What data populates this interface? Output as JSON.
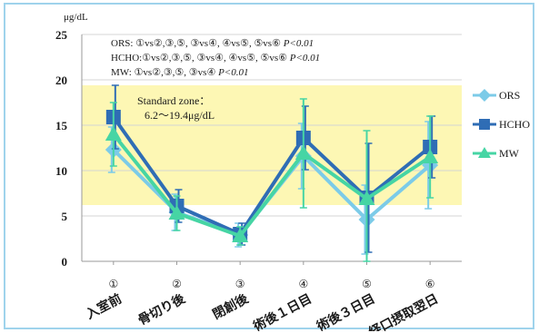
{
  "chart_data": {
    "type": "line",
    "unit_label": "μg/dL",
    "ylim": [
      0,
      25
    ],
    "yticks": [
      0,
      5,
      10,
      15,
      20,
      25
    ],
    "grid": true,
    "legend_position": "right",
    "category_numbers": [
      "①",
      "②",
      "③",
      "④",
      "⑤",
      "⑥"
    ],
    "categories": [
      "入室前",
      "骨切り後",
      "閉創後",
      "術後１日目",
      "術後３日目",
      "経口摂取翌日"
    ],
    "standard_zone": {
      "range": [
        6.2,
        19.4
      ],
      "label_line1": "Standard zone：",
      "label_line2": "6.2〜19.4μg/dL",
      "color": "#fdf7b4"
    },
    "notes": [
      {
        "name": "ORS",
        "text": ": ①vs②,③,⑤, ③vs④, ④vs⑤, ⑤vs⑥ ",
        "p": "P<0.01"
      },
      {
        "name": "HCHO",
        "text": ":①vs②,③,⑤, ③vs④, ④vs⑤, ⑤vs⑥ ",
        "p": "P<0.01"
      },
      {
        "name": "MW",
        "text": ": ①vs②,③,⑤, ③vs④ ",
        "p": "P<0.01"
      }
    ],
    "series": [
      {
        "name": "ORS",
        "color": "#7ccbe8",
        "marker": "diamond",
        "values": [
          12.3,
          5.4,
          2.9,
          11.6,
          4.6,
          10.6
        ],
        "errors": [
          2.5,
          2.0,
          1.3,
          3.6,
          3.8,
          4.8
        ]
      },
      {
        "name": "HCHO",
        "color": "#2f6db5",
        "marker": "square",
        "values": [
          15.9,
          6.1,
          3.0,
          13.6,
          7.0,
          12.6
        ],
        "errors": [
          3.5,
          1.8,
          1.2,
          3.5,
          6.0,
          3.4
        ]
      },
      {
        "name": "MW",
        "color": "#46d5a4",
        "marker": "triangle",
        "values": [
          14.0,
          5.3,
          2.8,
          11.9,
          6.9,
          11.5
        ],
        "errors": [
          3.5,
          1.9,
          1.0,
          6.0,
          7.5,
          4.5
        ]
      }
    ]
  }
}
